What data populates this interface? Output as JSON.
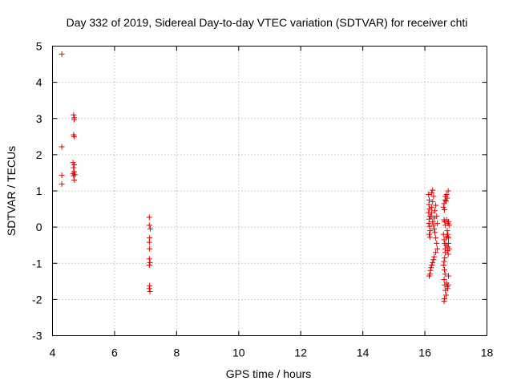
{
  "chart_data": {
    "type": "scatter",
    "title": "Day 332 of 2019, Sidereal Day-to-day VTEC variation (SDTVAR) for receiver chti",
    "xlabel": "GPS time / hours",
    "ylabel": "SDTVAR / TECUs",
    "xlim": [
      4,
      18
    ],
    "ylim": [
      -3,
      5
    ],
    "xticks": [
      4,
      6,
      8,
      10,
      12,
      14,
      16,
      18
    ],
    "yticks": [
      -3,
      -2,
      -1,
      0,
      1,
      2,
      3,
      4,
      5
    ],
    "grid": true,
    "marker": "+",
    "marker_color": "#e00000",
    "series": [
      {
        "name": "SDTVAR",
        "points": [
          [
            4.3,
            4.78
          ],
          [
            4.3,
            2.22
          ],
          [
            4.3,
            1.43
          ],
          [
            4.3,
            1.19
          ],
          [
            4.68,
            3.1
          ],
          [
            4.7,
            3.02
          ],
          [
            4.7,
            2.97
          ],
          [
            4.68,
            2.55
          ],
          [
            4.7,
            2.5
          ],
          [
            4.66,
            1.78
          ],
          [
            4.7,
            1.72
          ],
          [
            4.68,
            1.64
          ],
          [
            4.7,
            1.53
          ],
          [
            4.66,
            1.48
          ],
          [
            4.72,
            1.45
          ],
          [
            4.68,
            1.42
          ],
          [
            4.7,
            1.3
          ],
          [
            7.12,
            0.27
          ],
          [
            7.12,
            0.05
          ],
          [
            7.15,
            -0.05
          ],
          [
            7.13,
            -0.3
          ],
          [
            7.12,
            -0.42
          ],
          [
            7.13,
            -0.6
          ],
          [
            7.12,
            -0.88
          ],
          [
            7.14,
            -0.98
          ],
          [
            7.12,
            -1.05
          ],
          [
            7.13,
            -1.62
          ],
          [
            7.12,
            -1.7
          ],
          [
            7.14,
            -1.78
          ],
          [
            16.12,
            0.9
          ],
          [
            16.14,
            0.75
          ],
          [
            16.13,
            0.62
          ],
          [
            16.15,
            0.5
          ],
          [
            16.12,
            0.4
          ],
          [
            16.16,
            0.3
          ],
          [
            16.14,
            0.22
          ],
          [
            16.13,
            0.1
          ],
          [
            16.15,
            0.02
          ],
          [
            16.17,
            -0.1
          ],
          [
            16.14,
            -0.2
          ],
          [
            16.16,
            -0.28
          ],
          [
            16.2,
            0.3
          ],
          [
            16.22,
            0.55
          ],
          [
            16.25,
            0.7
          ],
          [
            16.22,
            0.4
          ],
          [
            16.25,
            0.15
          ],
          [
            16.28,
            0.05
          ],
          [
            16.3,
            0.25
          ],
          [
            16.32,
            0.45
          ],
          [
            16.3,
            -0.05
          ],
          [
            16.32,
            -0.15
          ],
          [
            16.35,
            -0.3
          ],
          [
            16.22,
            0.95
          ],
          [
            16.25,
            1.02
          ],
          [
            16.28,
            0.85
          ],
          [
            16.35,
            0.6
          ],
          [
            16.38,
            0.3
          ],
          [
            16.4,
            0.1
          ],
          [
            16.38,
            -0.45
          ],
          [
            16.4,
            -0.6
          ],
          [
            16.35,
            -0.7
          ],
          [
            16.3,
            -0.82
          ],
          [
            16.28,
            -0.9
          ],
          [
            16.25,
            -0.98
          ],
          [
            16.22,
            -1.05
          ],
          [
            16.2,
            -1.12
          ],
          [
            16.18,
            -1.2
          ],
          [
            16.16,
            -1.3
          ],
          [
            16.14,
            -1.35
          ],
          [
            16.6,
            0.55
          ],
          [
            16.62,
            0.65
          ],
          [
            16.63,
            0.48
          ],
          [
            16.65,
            0.75
          ],
          [
            16.66,
            0.85
          ],
          [
            16.68,
            0.72
          ],
          [
            16.7,
            0.9
          ],
          [
            16.72,
            0.8
          ],
          [
            16.75,
            1.0
          ],
          [
            16.62,
            0.2
          ],
          [
            16.64,
            0.15
          ],
          [
            16.66,
            0.05
          ],
          [
            16.6,
            -0.2
          ],
          [
            16.62,
            -0.35
          ],
          [
            16.64,
            -0.45
          ],
          [
            16.65,
            -0.6
          ],
          [
            16.68,
            -0.5
          ],
          [
            16.7,
            -0.3
          ],
          [
            16.72,
            -0.1
          ],
          [
            16.74,
            0.1
          ],
          [
            16.76,
            0.15
          ],
          [
            16.78,
            0.05
          ],
          [
            16.7,
            0.2
          ],
          [
            16.66,
            -0.7
          ],
          [
            16.64,
            -0.85
          ],
          [
            16.62,
            -0.95
          ],
          [
            16.6,
            -1.05
          ],
          [
            16.63,
            -1.18
          ],
          [
            16.65,
            -1.3
          ],
          [
            16.62,
            -1.45
          ],
          [
            16.64,
            -1.6
          ],
          [
            16.66,
            -1.75
          ],
          [
            16.68,
            -1.88
          ],
          [
            16.63,
            -1.98
          ],
          [
            16.62,
            -2.05
          ],
          [
            16.7,
            -1.55
          ],
          [
            16.72,
            -1.65
          ],
          [
            16.75,
            -1.6
          ],
          [
            16.73,
            -1.7
          ],
          [
            16.76,
            -1.35
          ],
          [
            16.75,
            -0.75
          ],
          [
            16.73,
            -0.65
          ],
          [
            16.74,
            -0.55
          ],
          [
            16.76,
            -0.45
          ],
          [
            16.78,
            -0.6
          ],
          [
            16.72,
            -0.25
          ],
          [
            16.74,
            -0.2
          ],
          [
            16.76,
            -0.3
          ]
        ]
      }
    ]
  }
}
